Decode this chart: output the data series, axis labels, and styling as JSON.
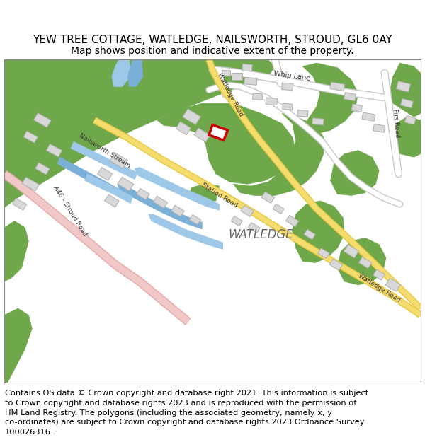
{
  "title": "YEW TREE COTTAGE, WATLEDGE, NAILSWORTH, STROUD, GL6 0AY",
  "subtitle": "Map shows position and indicative extent of the property.",
  "footer_line1": "Contains OS data © Crown copyright and database right 2021. This information is subject",
  "footer_line2": "to Crown copyright and database rights 2023 and is reproduced with the permission of",
  "footer_line3": "HM Land Registry. The polygons (including the associated geometry, namely x, y",
  "footer_line4": "co-ordinates) are subject to Crown copyright and database rights 2023 Ordnance Survey",
  "footer_line5": "100026316.",
  "map_bg": "#ffffff",
  "green_color": "#6ea84a",
  "road_yellow": "#f5dc6e",
  "road_yellow_dark": "#e8c840",
  "water_blue": "#9ec8e8",
  "water_blue2": "#7ab0d8",
  "pink_color": "#f0c8c8",
  "pink_dark": "#e8a8a8",
  "road_white": "#ffffff",
  "road_gray": "#c8c8c8",
  "building_color": "#d8d8d8",
  "building_edge": "#b0b0b0",
  "red_highlight": "#cc0000",
  "title_fontsize": 11,
  "subtitle_fontsize": 10,
  "footer_fontsize": 8.2
}
